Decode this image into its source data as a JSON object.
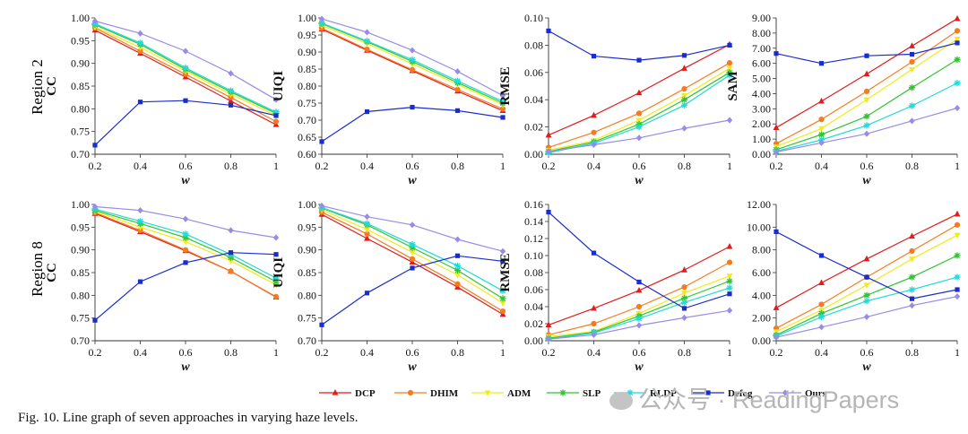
{
  "caption": "Fig. 10.   Line graph of seven approaches in varying haze levels.",
  "watermark": "公众号 · ReadingPapers",
  "row_labels": [
    "Region 2",
    "Region 8"
  ],
  "legend": [
    {
      "name": "DCP",
      "color": "#e01c1c",
      "marker": "triangle"
    },
    {
      "name": "DHIM",
      "color": "#f47c20",
      "marker": "circle"
    },
    {
      "name": "ADM",
      "color": "#f2ea1a",
      "marker": "triangle-down"
    },
    {
      "name": "SLP",
      "color": "#31c431",
      "marker": "star"
    },
    {
      "name": "RLDP",
      "color": "#22dada",
      "marker": "star"
    },
    {
      "name": "Defog",
      "color": "#1a2ccc",
      "marker": "square"
    },
    {
      "name": "Ours",
      "color": "#9a8ce6",
      "marker": "diamond"
    }
  ],
  "chart_data": [
    {
      "type": "line",
      "row": "Region 2",
      "xlabel": "w",
      "ylabel": "CC",
      "x": [
        0.2,
        0.4,
        0.6,
        0.8,
        1
      ],
      "xticks": [
        "0.2",
        "0.4",
        "0.6",
        "0.8",
        "1"
      ],
      "ylim": [
        0.7,
        1.0
      ],
      "yticks": [
        "0.70",
        "0.75",
        "0.80",
        "0.85",
        "0.90",
        "0.95",
        "1.00"
      ],
      "series": [
        {
          "name": "DCP",
          "values": [
            0.973,
            0.922,
            0.87,
            0.817,
            0.765
          ]
        },
        {
          "name": "DHIM",
          "values": [
            0.978,
            0.927,
            0.876,
            0.825,
            0.772
          ]
        },
        {
          "name": "ADM",
          "values": [
            0.98,
            0.935,
            0.883,
            0.832,
            0.785
          ]
        },
        {
          "name": "SLP",
          "values": [
            0.985,
            0.942,
            0.887,
            0.837,
            0.79
          ]
        },
        {
          "name": "RLDP",
          "values": [
            0.987,
            0.945,
            0.89,
            0.84,
            0.793
          ]
        },
        {
          "name": "Defog",
          "values": [
            0.72,
            0.815,
            0.818,
            0.808,
            0.785
          ]
        },
        {
          "name": "Ours",
          "values": [
            0.993,
            0.966,
            0.927,
            0.878,
            0.82
          ]
        }
      ]
    },
    {
      "type": "line",
      "row": "Region 2",
      "xlabel": "w",
      "ylabel": "UIQI",
      "x": [
        0.2,
        0.4,
        0.6,
        0.8,
        1
      ],
      "xticks": [
        "0.2",
        "0.4",
        "0.6",
        "0.8",
        "1"
      ],
      "ylim": [
        0.6,
        1.0
      ],
      "yticks": [
        "0.60",
        "0.65",
        "0.70",
        "0.75",
        "0.80",
        "0.85",
        "0.90",
        "0.95",
        "1.00"
      ],
      "series": [
        {
          "name": "DCP",
          "values": [
            0.967,
            0.905,
            0.845,
            0.785,
            0.728
          ]
        },
        {
          "name": "DHIM",
          "values": [
            0.97,
            0.908,
            0.848,
            0.79,
            0.733
          ]
        },
        {
          "name": "ADM",
          "values": [
            0.978,
            0.925,
            0.865,
            0.805,
            0.745
          ]
        },
        {
          "name": "SLP",
          "values": [
            0.983,
            0.93,
            0.872,
            0.81,
            0.75
          ]
        },
        {
          "name": "RLDP",
          "values": [
            0.985,
            0.932,
            0.877,
            0.815,
            0.755
          ]
        },
        {
          "name": "Defog",
          "values": [
            0.637,
            0.725,
            0.738,
            0.728,
            0.708
          ]
        },
        {
          "name": "Ours",
          "values": [
            0.997,
            0.958,
            0.905,
            0.843,
            0.772
          ]
        }
      ]
    },
    {
      "type": "line",
      "row": "Region 2",
      "xlabel": "w",
      "ylabel": "RMSE",
      "x": [
        0.2,
        0.4,
        0.6,
        0.8,
        1
      ],
      "xticks": [
        "0.2",
        "0.4",
        "0.6",
        "0.8",
        "1"
      ],
      "ylim": [
        0,
        0.1
      ],
      "yticks": [
        "0.00",
        "0.02",
        "0.04",
        "0.06",
        "0.08",
        "0.10"
      ],
      "series": [
        {
          "name": "DCP",
          "values": [
            0.014,
            0.0285,
            0.045,
            0.063,
            0.0805
          ]
        },
        {
          "name": "DHIM",
          "values": [
            0.005,
            0.016,
            0.03,
            0.048,
            0.067
          ]
        },
        {
          "name": "ADM",
          "values": [
            0.003,
            0.01,
            0.025,
            0.043,
            0.063
          ]
        },
        {
          "name": "SLP",
          "values": [
            0.002,
            0.009,
            0.022,
            0.04,
            0.06
          ]
        },
        {
          "name": "RLDP",
          "values": [
            0.001,
            0.008,
            0.02,
            0.036,
            0.058
          ]
        },
        {
          "name": "Defog",
          "values": [
            0.0905,
            0.072,
            0.069,
            0.0725,
            0.08
          ]
        },
        {
          "name": "Ours",
          "values": [
            0.002,
            0.007,
            0.012,
            0.019,
            0.025
          ]
        }
      ]
    },
    {
      "type": "line",
      "row": "Region 2",
      "xlabel": "w",
      "ylabel": "SAM",
      "x": [
        0.2,
        0.4,
        0.6,
        0.8,
        1
      ],
      "xticks": [
        "0.2",
        "0.4",
        "0.6",
        "0.8",
        "1"
      ],
      "ylim": [
        0,
        9
      ],
      "yticks": [
        "0.00",
        "1.00",
        "2.00",
        "3.00",
        "4.00",
        "5.00",
        "6.00",
        "7.00",
        "8.00",
        "9.00"
      ],
      "series": [
        {
          "name": "DCP",
          "values": [
            1.75,
            3.5,
            5.3,
            7.15,
            8.95
          ]
        },
        {
          "name": "DHIM",
          "values": [
            0.7,
            2.3,
            4.15,
            6.1,
            8.15
          ]
        },
        {
          "name": "ADM",
          "values": [
            0.5,
            1.7,
            3.6,
            5.6,
            7.6
          ]
        },
        {
          "name": "SLP",
          "values": [
            0.3,
            1.3,
            2.5,
            4.4,
            6.25
          ]
        },
        {
          "name": "RLDP",
          "values": [
            0.2,
            0.95,
            1.9,
            3.2,
            4.7
          ]
        },
        {
          "name": "Defog",
          "values": [
            6.65,
            6.0,
            6.5,
            6.6,
            7.35
          ]
        },
        {
          "name": "Ours",
          "values": [
            0.15,
            0.75,
            1.35,
            2.2,
            3.05
          ]
        }
      ]
    },
    {
      "type": "line",
      "row": "Region 8",
      "xlabel": "w",
      "ylabel": "CC",
      "x": [
        0.2,
        0.4,
        0.6,
        0.8,
        1
      ],
      "xticks": [
        "0.2",
        "0.4",
        "0.6",
        "0.8",
        "1"
      ],
      "ylim": [
        0.7,
        1.0
      ],
      "yticks": [
        "0.70",
        "0.75",
        "0.80",
        "0.85",
        "0.90",
        "0.95",
        "1.00"
      ],
      "series": [
        {
          "name": "DCP",
          "values": [
            0.98,
            0.94,
            0.898,
            0.853,
            0.796
          ]
        },
        {
          "name": "DHIM",
          "values": [
            0.982,
            0.943,
            0.9,
            0.853,
            0.797
          ]
        },
        {
          "name": "ADM",
          "values": [
            0.985,
            0.95,
            0.918,
            0.876,
            0.823
          ]
        },
        {
          "name": "SLP",
          "values": [
            0.987,
            0.958,
            0.927,
            0.883,
            0.83
          ]
        },
        {
          "name": "RLDP",
          "values": [
            0.99,
            0.963,
            0.935,
            0.89,
            0.838
          ]
        },
        {
          "name": "Defog",
          "values": [
            0.745,
            0.83,
            0.872,
            0.894,
            0.89
          ]
        },
        {
          "name": "Ours",
          "values": [
            0.995,
            0.987,
            0.968,
            0.943,
            0.927
          ]
        }
      ]
    },
    {
      "type": "line",
      "row": "Region 8",
      "xlabel": "w",
      "ylabel": "UIQI",
      "x": [
        0.2,
        0.4,
        0.6,
        0.8,
        1
      ],
      "xticks": [
        "0.2",
        "0.4",
        "0.6",
        "0.8",
        "1"
      ],
      "ylim": [
        0.7,
        1.0
      ],
      "yticks": [
        "0.70",
        "0.75",
        "0.80",
        "0.85",
        "0.90",
        "0.95",
        "1.00"
      ],
      "series": [
        {
          "name": "DCP",
          "values": [
            0.978,
            0.925,
            0.873,
            0.818,
            0.758
          ]
        },
        {
          "name": "DHIM",
          "values": [
            0.983,
            0.935,
            0.88,
            0.825,
            0.765
          ]
        },
        {
          "name": "ADM",
          "values": [
            0.988,
            0.945,
            0.895,
            0.845,
            0.783
          ]
        },
        {
          "name": "SLP",
          "values": [
            0.992,
            0.955,
            0.905,
            0.855,
            0.793
          ]
        },
        {
          "name": "RLDP",
          "values": [
            0.993,
            0.958,
            0.912,
            0.865,
            0.81
          ]
        },
        {
          "name": "Defog",
          "values": [
            0.735,
            0.805,
            0.86,
            0.887,
            0.875
          ]
        },
        {
          "name": "Ours",
          "values": [
            0.997,
            0.973,
            0.955,
            0.923,
            0.897
          ]
        }
      ]
    },
    {
      "type": "line",
      "row": "Region 8",
      "xlabel": "w",
      "ylabel": "RMSE",
      "x": [
        0.2,
        0.4,
        0.6,
        0.8,
        1
      ],
      "xticks": [
        "0.2",
        "0.4",
        "0.6",
        "0.8",
        "1"
      ],
      "ylim": [
        0,
        0.16
      ],
      "yticks": [
        "0.00",
        "0.02",
        "0.04",
        "0.06",
        "0.08",
        "0.10",
        "0.12",
        "0.14",
        "0.16"
      ],
      "series": [
        {
          "name": "DCP",
          "values": [
            0.0185,
            0.038,
            0.059,
            0.083,
            0.1105
          ]
        },
        {
          "name": "DHIM",
          "values": [
            0.007,
            0.02,
            0.04,
            0.063,
            0.092
          ]
        },
        {
          "name": "ADM",
          "values": [
            0.005,
            0.011,
            0.032,
            0.056,
            0.076
          ]
        },
        {
          "name": "SLP",
          "values": [
            0.003,
            0.01,
            0.029,
            0.05,
            0.07
          ]
        },
        {
          "name": "RLDP",
          "values": [
            0.002,
            0.009,
            0.026,
            0.045,
            0.062
          ]
        },
        {
          "name": "Defog",
          "values": [
            0.151,
            0.103,
            0.069,
            0.038,
            0.055
          ]
        },
        {
          "name": "Ours",
          "values": [
            0.002,
            0.007,
            0.018,
            0.027,
            0.0355
          ]
        }
      ]
    },
    {
      "type": "line",
      "row": "Region 8",
      "xlabel": "w",
      "ylabel": "",
      "x": [
        0.2,
        0.4,
        0.6,
        0.8,
        1
      ],
      "xticks": [
        "0.2",
        "0.4",
        "0.6",
        "0.8",
        "1"
      ],
      "ylim": [
        0,
        12
      ],
      "yticks": [
        "0.00",
        "2.00",
        "4.00",
        "6.00",
        "8.00",
        "10.00",
        "12.00"
      ],
      "series": [
        {
          "name": "DCP",
          "values": [
            2.9,
            5.1,
            7.2,
            9.2,
            11.15
          ]
        },
        {
          "name": "DHIM",
          "values": [
            1.1,
            3.2,
            5.6,
            7.9,
            10.2
          ]
        },
        {
          "name": "ADM",
          "values": [
            0.8,
            2.7,
            4.9,
            7.2,
            9.3
          ]
        },
        {
          "name": "SLP",
          "values": [
            0.5,
            2.4,
            4.0,
            5.6,
            7.5
          ]
        },
        {
          "name": "RLDP",
          "values": [
            0.4,
            2.1,
            3.5,
            4.5,
            5.6
          ]
        },
        {
          "name": "Defog",
          "values": [
            9.6,
            7.5,
            5.6,
            3.7,
            4.5
          ]
        },
        {
          "name": "Ours",
          "values": [
            0.3,
            1.2,
            2.1,
            3.1,
            3.9
          ]
        }
      ]
    }
  ]
}
